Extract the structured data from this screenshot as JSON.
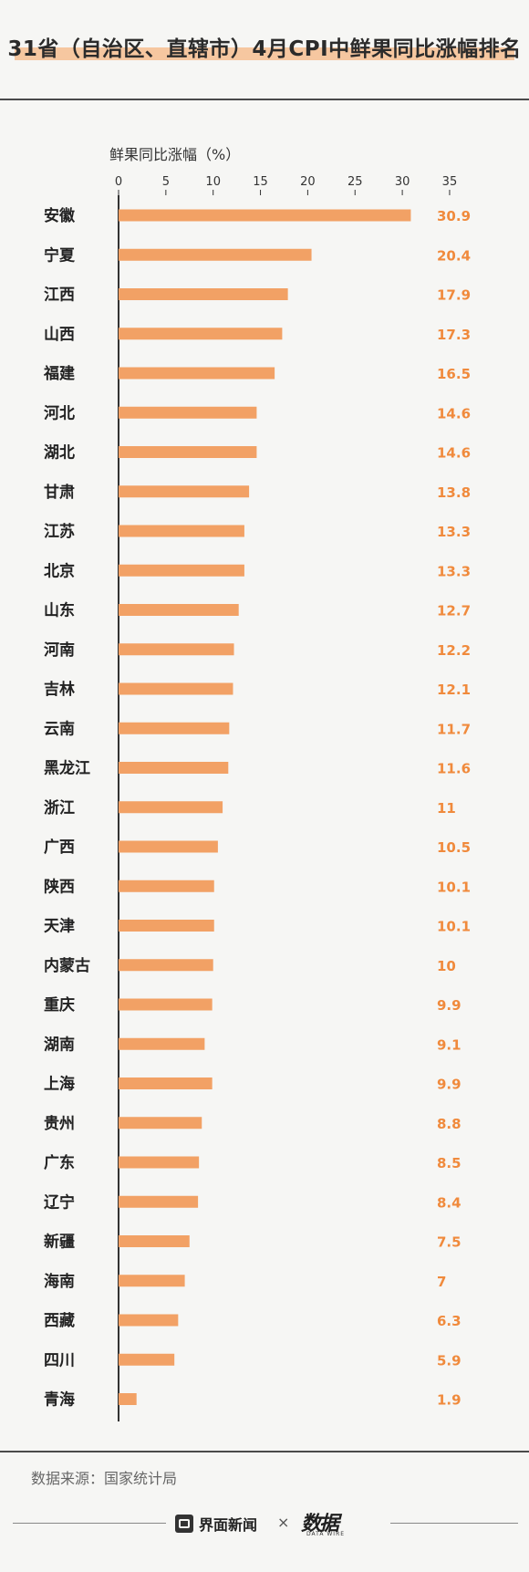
{
  "title": "31省（自治区、直辖市）4月CPI中鲜果同比涨幅排名",
  "source": "数据来源：国家统计局",
  "footer": {
    "brand1": "界面新闻",
    "times": "×",
    "brand2": "数据",
    "brand2_sub": "DATA WIRE"
  },
  "colors": {
    "bar": "#f2a165",
    "value_text": "#f08a3c",
    "title_highlight": "#f6c7a0"
  },
  "chart_data": {
    "type": "bar",
    "orientation": "horizontal",
    "xlabel": "鲜果同比涨幅（%）",
    "ylabel": "",
    "xlim": [
      0,
      35
    ],
    "xticks": [
      0,
      5,
      10,
      15,
      20,
      25,
      30,
      35
    ],
    "categories": [
      "安徽",
      "宁夏",
      "江西",
      "山西",
      "福建",
      "河北",
      "湖北",
      "甘肃",
      "江苏",
      "北京",
      "山东",
      "河南",
      "吉林",
      "云南",
      "黑龙江",
      "浙江",
      "广西",
      "陕西",
      "天津",
      "内蒙古",
      "重庆",
      "湖南",
      "上海",
      "贵州",
      "广东",
      "辽宁",
      "新疆",
      "海南",
      "西藏",
      "四川",
      "青海"
    ],
    "values": [
      30.9,
      20.4,
      17.9,
      17.3,
      16.5,
      14.6,
      14.6,
      13.8,
      13.3,
      13.3,
      12.7,
      12.2,
      12.1,
      11.7,
      11.6,
      11,
      10.5,
      10.1,
      10.1,
      10,
      9.9,
      9.1,
      9.9,
      8.8,
      8.5,
      8.4,
      7.5,
      7,
      6.3,
      5.9,
      1.9
    ],
    "labels": [
      "30.9",
      "20.4",
      "17.9",
      "17.3",
      "16.5",
      "14.6",
      "14.6",
      "13.8",
      "13.3",
      "13.3",
      "12.7",
      "12.2",
      "12.1",
      "11.7",
      "11.6",
      "11",
      "10.5",
      "10.1",
      "10.1",
      "10",
      "9.9",
      "9.1",
      "9.9",
      "8.8",
      "8.5",
      "8.4",
      "7.5",
      "7",
      "6.3",
      "5.9",
      "1.9"
    ]
  }
}
